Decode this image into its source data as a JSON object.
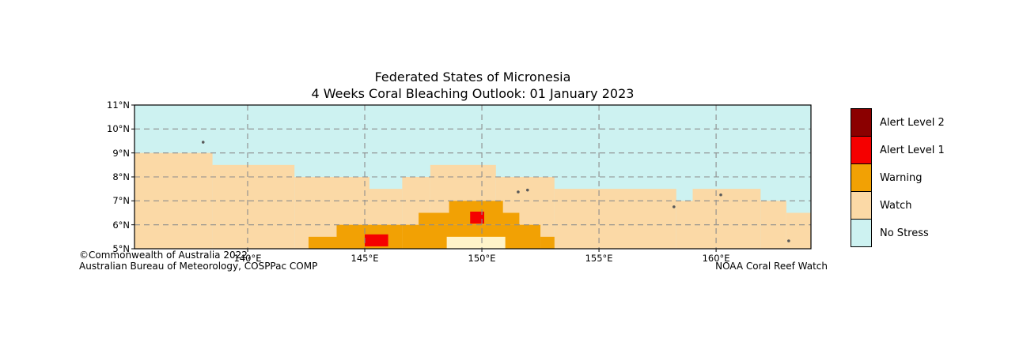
{
  "title": {
    "line1": "Federated States of Micronesia",
    "line2": "4 Weeks Coral Bleaching Outlook: 01 January 2023"
  },
  "colors": {
    "no_stress": "#CDF2F1",
    "watch": "#FBD9A6",
    "watch_pale": "#FFF3C9",
    "warning": "#F2A104",
    "alert1": "#F50000",
    "alert2": "#8B0000",
    "grid": "#8C8C8C",
    "island": "#5A5A5A",
    "frame": "#000000"
  },
  "map": {
    "lon_range": [
      135.17,
      164.05
    ],
    "lat_range": [
      5,
      11
    ],
    "x_ticks": [
      {
        "v": 140,
        "label": "140°E"
      },
      {
        "v": 145,
        "label": "145°E"
      },
      {
        "v": 150,
        "label": "150°E"
      },
      {
        "v": 155,
        "label": "155°E"
      },
      {
        "v": 160,
        "label": "160°E"
      }
    ],
    "y_ticks": [
      {
        "v": 11,
        "label": "11°N"
      },
      {
        "v": 10,
        "label": "10°N"
      },
      {
        "v": 9,
        "label": "9°N"
      },
      {
        "v": 8,
        "label": "8°N"
      },
      {
        "v": 7,
        "label": "7°N"
      },
      {
        "v": 6,
        "label": "6°N"
      },
      {
        "v": 5,
        "label": "5°N"
      }
    ],
    "grid_lons": [
      140,
      145,
      150,
      155,
      160
    ],
    "grid_lats": [
      6,
      7,
      8,
      9,
      10
    ],
    "regions": [
      {
        "level": "watch",
        "lon": [
          135.17,
          138.5
        ],
        "lat": [
          5,
          9
        ]
      },
      {
        "level": "watch",
        "lon": [
          138.5,
          142.0
        ],
        "lat": [
          5,
          8.5
        ]
      },
      {
        "level": "watch",
        "lon": [
          142.0,
          145.2
        ],
        "lat": [
          5,
          8
        ]
      },
      {
        "level": "watch",
        "lon": [
          145.2,
          146.6
        ],
        "lat": [
          5,
          7.5
        ]
      },
      {
        "level": "watch",
        "lon": [
          146.6,
          147.8
        ],
        "lat": [
          5,
          8
        ]
      },
      {
        "level": "watch",
        "lon": [
          147.8,
          150.6
        ],
        "lat": [
          5,
          8.5
        ]
      },
      {
        "level": "watch",
        "lon": [
          150.6,
          153.1
        ],
        "lat": [
          5,
          8
        ]
      },
      {
        "level": "watch",
        "lon": [
          153.1,
          158.3
        ],
        "lat": [
          5,
          7.5
        ]
      },
      {
        "level": "watch",
        "lon": [
          158.3,
          159.0
        ],
        "lat": [
          5,
          7
        ]
      },
      {
        "level": "watch",
        "lon": [
          159.0,
          161.9
        ],
        "lat": [
          5,
          7.5
        ]
      },
      {
        "level": "watch",
        "lon": [
          161.9,
          163.0
        ],
        "lat": [
          5,
          7
        ]
      },
      {
        "level": "watch",
        "lon": [
          163.0,
          164.05
        ],
        "lat": [
          5,
          6.5
        ]
      },
      {
        "level": "warning",
        "lon": [
          142.6,
          143.8
        ],
        "lat": [
          5,
          5.5
        ]
      },
      {
        "level": "warning",
        "lon": [
          143.8,
          146.6
        ],
        "lat": [
          5,
          6
        ]
      },
      {
        "level": "warning",
        "lon": [
          146.6,
          152.5
        ],
        "lat": [
          5,
          6
        ]
      },
      {
        "level": "warning",
        "lon": [
          147.3,
          151.6
        ],
        "lat": [
          6,
          6.5
        ]
      },
      {
        "level": "warning",
        "lon": [
          148.6,
          150.9
        ],
        "lat": [
          6.5,
          7
        ]
      },
      {
        "level": "warning",
        "lon": [
          152.5,
          153.1
        ],
        "lat": [
          5,
          5.5
        ]
      },
      {
        "level": "watch_pale",
        "lon": [
          148.5,
          151.0
        ],
        "lat": [
          5,
          5.5
        ]
      },
      {
        "level": "alert1",
        "lon": [
          145.0,
          146.0
        ],
        "lat": [
          5.1,
          5.6
        ]
      },
      {
        "level": "alert1",
        "lon": [
          149.5,
          150.1
        ],
        "lat": [
          6.05,
          6.55
        ]
      }
    ],
    "islands": [
      {
        "lon": 138.1,
        "lat": 9.45
      },
      {
        "lon": 151.55,
        "lat": 7.37
      },
      {
        "lon": 151.95,
        "lat": 7.45
      },
      {
        "lon": 158.2,
        "lat": 6.75
      },
      {
        "lon": 160.2,
        "lat": 7.25
      },
      {
        "lon": 163.1,
        "lat": 5.33
      }
    ]
  },
  "legend": {
    "items": [
      {
        "label": "Alert Level 2",
        "color_key": "alert2"
      },
      {
        "label": "Alert Level 1",
        "color_key": "alert1"
      },
      {
        "label": "Warning",
        "color_key": "warning"
      },
      {
        "label": "Watch",
        "color_key": "watch"
      },
      {
        "label": "No Stress",
        "color_key": "no_stress"
      }
    ]
  },
  "credits": {
    "line1": "©Commonwealth of Australia 2022,",
    "line2": "Australian Bureau of Meteorology, COSPPac COMP",
    "right": "NOAA Coral Reef Watch"
  }
}
